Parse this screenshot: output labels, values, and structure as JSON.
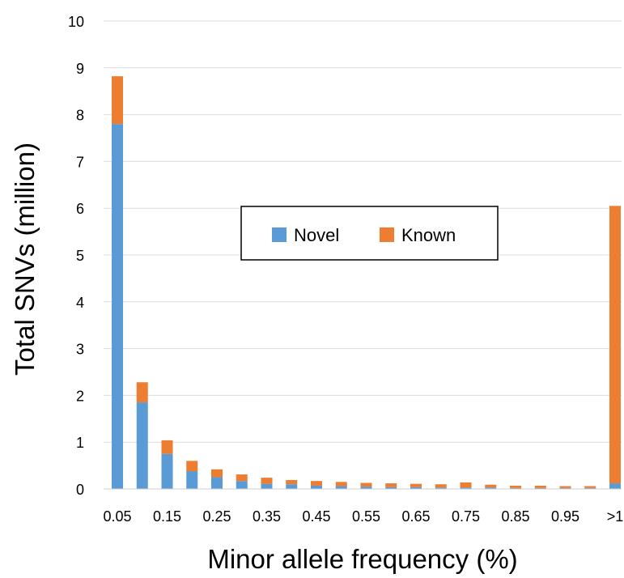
{
  "chart_data": {
    "type": "bar",
    "stacked": true,
    "xlabel": "Minor allele frequency (%)",
    "ylabel": "Total SNVs (million)",
    "ylim": [
      0,
      10
    ],
    "yticks": [
      0,
      1,
      2,
      3,
      4,
      5,
      6,
      7,
      8,
      9,
      10
    ],
    "grid": true,
    "legend_position": "center",
    "x_tick_labels": [
      "0.05",
      "0.15",
      "0.25",
      "0.35",
      "0.45",
      "0.55",
      "0.65",
      "0.75",
      "0.85",
      "0.95",
      ">1"
    ],
    "categories": [
      "0.05",
      "0.1",
      "0.15",
      "0.2",
      "0.25",
      "0.3",
      "0.35",
      "0.4",
      "0.45",
      "0.5",
      "0.55",
      "0.6",
      "0.65",
      "0.7",
      "0.75",
      "0.8",
      "0.85",
      "0.9",
      "0.95",
      "1",
      ">1"
    ],
    "series": [
      {
        "name": "Novel",
        "color": "#5b9bd5",
        "values": [
          7.8,
          1.85,
          0.75,
          0.38,
          0.25,
          0.17,
          0.11,
          0.1,
          0.07,
          0.06,
          0.05,
          0.04,
          0.04,
          0.03,
          0.03,
          0.03,
          0.02,
          0.02,
          0.02,
          0.02,
          0.12
        ]
      },
      {
        "name": "Known",
        "color": "#ed7d31",
        "values": [
          1.02,
          0.43,
          0.29,
          0.22,
          0.17,
          0.14,
          0.13,
          0.09,
          0.1,
          0.09,
          0.08,
          0.08,
          0.07,
          0.07,
          0.11,
          0.06,
          0.05,
          0.05,
          0.04,
          0.04,
          5.93
        ]
      }
    ]
  }
}
